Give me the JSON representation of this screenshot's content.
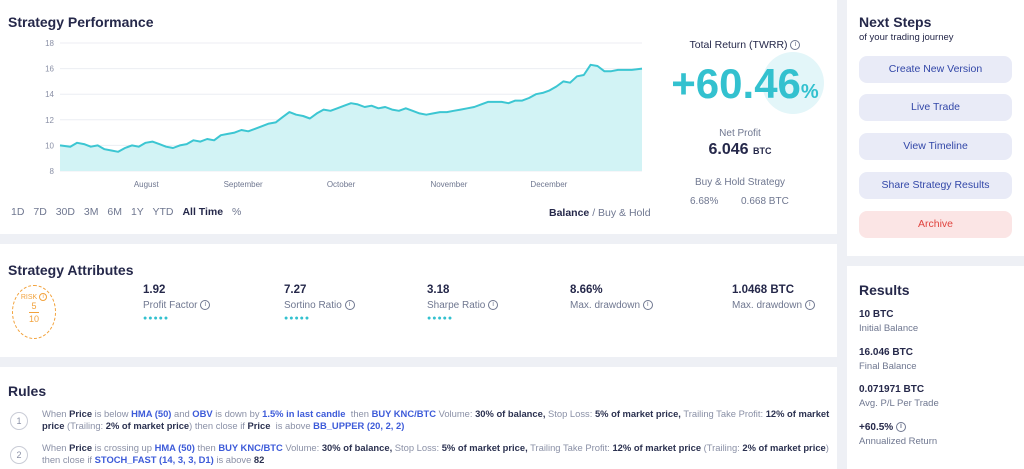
{
  "performance": {
    "title": "Strategy Performance",
    "periods": [
      "1D",
      "7D",
      "30D",
      "3M",
      "6M",
      "1Y",
      "YTD",
      "All Time",
      "%"
    ],
    "active_period": "All Time",
    "balance_label": "Balance",
    "buyhold_label": "Buy & Hold",
    "total_return_label": "Total Return (TWRR)",
    "total_return_value": "+60.46",
    "total_return_pct_sign": "%",
    "net_profit_label": "Net Profit",
    "net_profit_value": "6.046",
    "net_profit_unit": "BTC",
    "bh_label": "Buy & Hold Strategy",
    "bh_pct": "6.68%",
    "bh_btc": "0.668 BTC"
  },
  "chart_data": {
    "type": "area",
    "y_ticks": [
      8,
      10,
      12,
      14,
      16,
      18
    ],
    "ylim": [
      8,
      18
    ],
    "x_month_labels": [
      "August",
      "September",
      "October",
      "November",
      "December"
    ],
    "x_month_positions": [
      25.2,
      53.5,
      82.1,
      113.6,
      142.8
    ],
    "xlim": [
      0,
      170
    ],
    "grid": true,
    "color": "#3cc6d2",
    "fill": "#d2f3f5",
    "series": [
      {
        "x": [
          0,
          3,
          5,
          7,
          9,
          11,
          13,
          15,
          17,
          19,
          21,
          23,
          25,
          27,
          29,
          31,
          33,
          35,
          37,
          39,
          41,
          43,
          45,
          47,
          49,
          51,
          53,
          55,
          57,
          59,
          61,
          63,
          65,
          67,
          69,
          71,
          73,
          75,
          77,
          79,
          81,
          83,
          85,
          87,
          89,
          91,
          93,
          95,
          97,
          99,
          101,
          103,
          105,
          107,
          109,
          111,
          113,
          115,
          117,
          119,
          121,
          123,
          125,
          127,
          129,
          131,
          133,
          135,
          137,
          139,
          141,
          143,
          145,
          147,
          149,
          151,
          153,
          155,
          157,
          159,
          161,
          163,
          165,
          167,
          170
        ],
        "values": [
          10.0,
          9.9,
          10.2,
          10.1,
          9.9,
          10.0,
          9.7,
          9.6,
          9.5,
          9.8,
          10.0,
          9.9,
          10.2,
          10.3,
          10.1,
          9.9,
          9.8,
          10.0,
          10.1,
          10.4,
          10.3,
          10.5,
          10.4,
          10.8,
          10.9,
          11.0,
          11.2,
          11.1,
          11.3,
          11.5,
          11.7,
          11.8,
          12.2,
          12.6,
          12.4,
          12.3,
          12.1,
          12.5,
          12.8,
          12.7,
          12.9,
          13.1,
          13.3,
          13.2,
          13.0,
          13.1,
          12.9,
          13.0,
          12.8,
          12.7,
          12.9,
          12.7,
          12.5,
          12.4,
          12.5,
          12.6,
          12.6,
          12.7,
          12.8,
          12.9,
          13.0,
          13.2,
          13.4,
          13.4,
          13.4,
          13.3,
          13.5,
          13.5,
          13.7,
          14.0,
          14.1,
          14.3,
          14.6,
          15.0,
          14.9,
          15.4,
          15.5,
          16.3,
          16.2,
          15.8,
          15.8,
          15.9,
          15.9,
          15.9,
          16.0
        ]
      }
    ]
  },
  "attributes": {
    "title": "Strategy Attributes",
    "risk_label": "RISK",
    "risk_value": "5",
    "risk_max": "10",
    "items": [
      {
        "value": "1.92",
        "label": "Profit Factor",
        "dots": "●●●●●"
      },
      {
        "value": "7.27",
        "label": "Sortino Ratio",
        "dots": "●●●●●"
      },
      {
        "value": "3.18",
        "label": "Sharpe Ratio",
        "dots": "●●●●●"
      },
      {
        "value": "8.66%",
        "label": "Max. drawdown",
        "dots": ""
      },
      {
        "value": "1.0468 BTC",
        "label": "Max. drawdown",
        "dots": ""
      }
    ]
  },
  "rules": {
    "title": "Rules",
    "items": [
      {
        "num": "1"
      },
      {
        "num": "2"
      }
    ]
  },
  "next_steps": {
    "title": "Next Steps",
    "subtitle": "of your trading journey",
    "buttons": [
      "Create New Version",
      "Live Trade",
      "View Timeline",
      "Share Strategy Results",
      "Archive"
    ]
  },
  "results": {
    "title": "Results",
    "items": [
      {
        "value": "10 BTC",
        "label": "Initial Balance"
      },
      {
        "value": "16.046 BTC",
        "label": "Final Balance"
      },
      {
        "value": "0.071971 BTC",
        "label": "Avg. P/L Per Trade"
      },
      {
        "value": "+60.5%",
        "label": "Annualized Return"
      }
    ]
  },
  "colors": {
    "accent": "#33c1cf",
    "link_blue": "#3d5bd9",
    "risk_orange": "#f2a23c",
    "archive_red": "#e0443f"
  }
}
